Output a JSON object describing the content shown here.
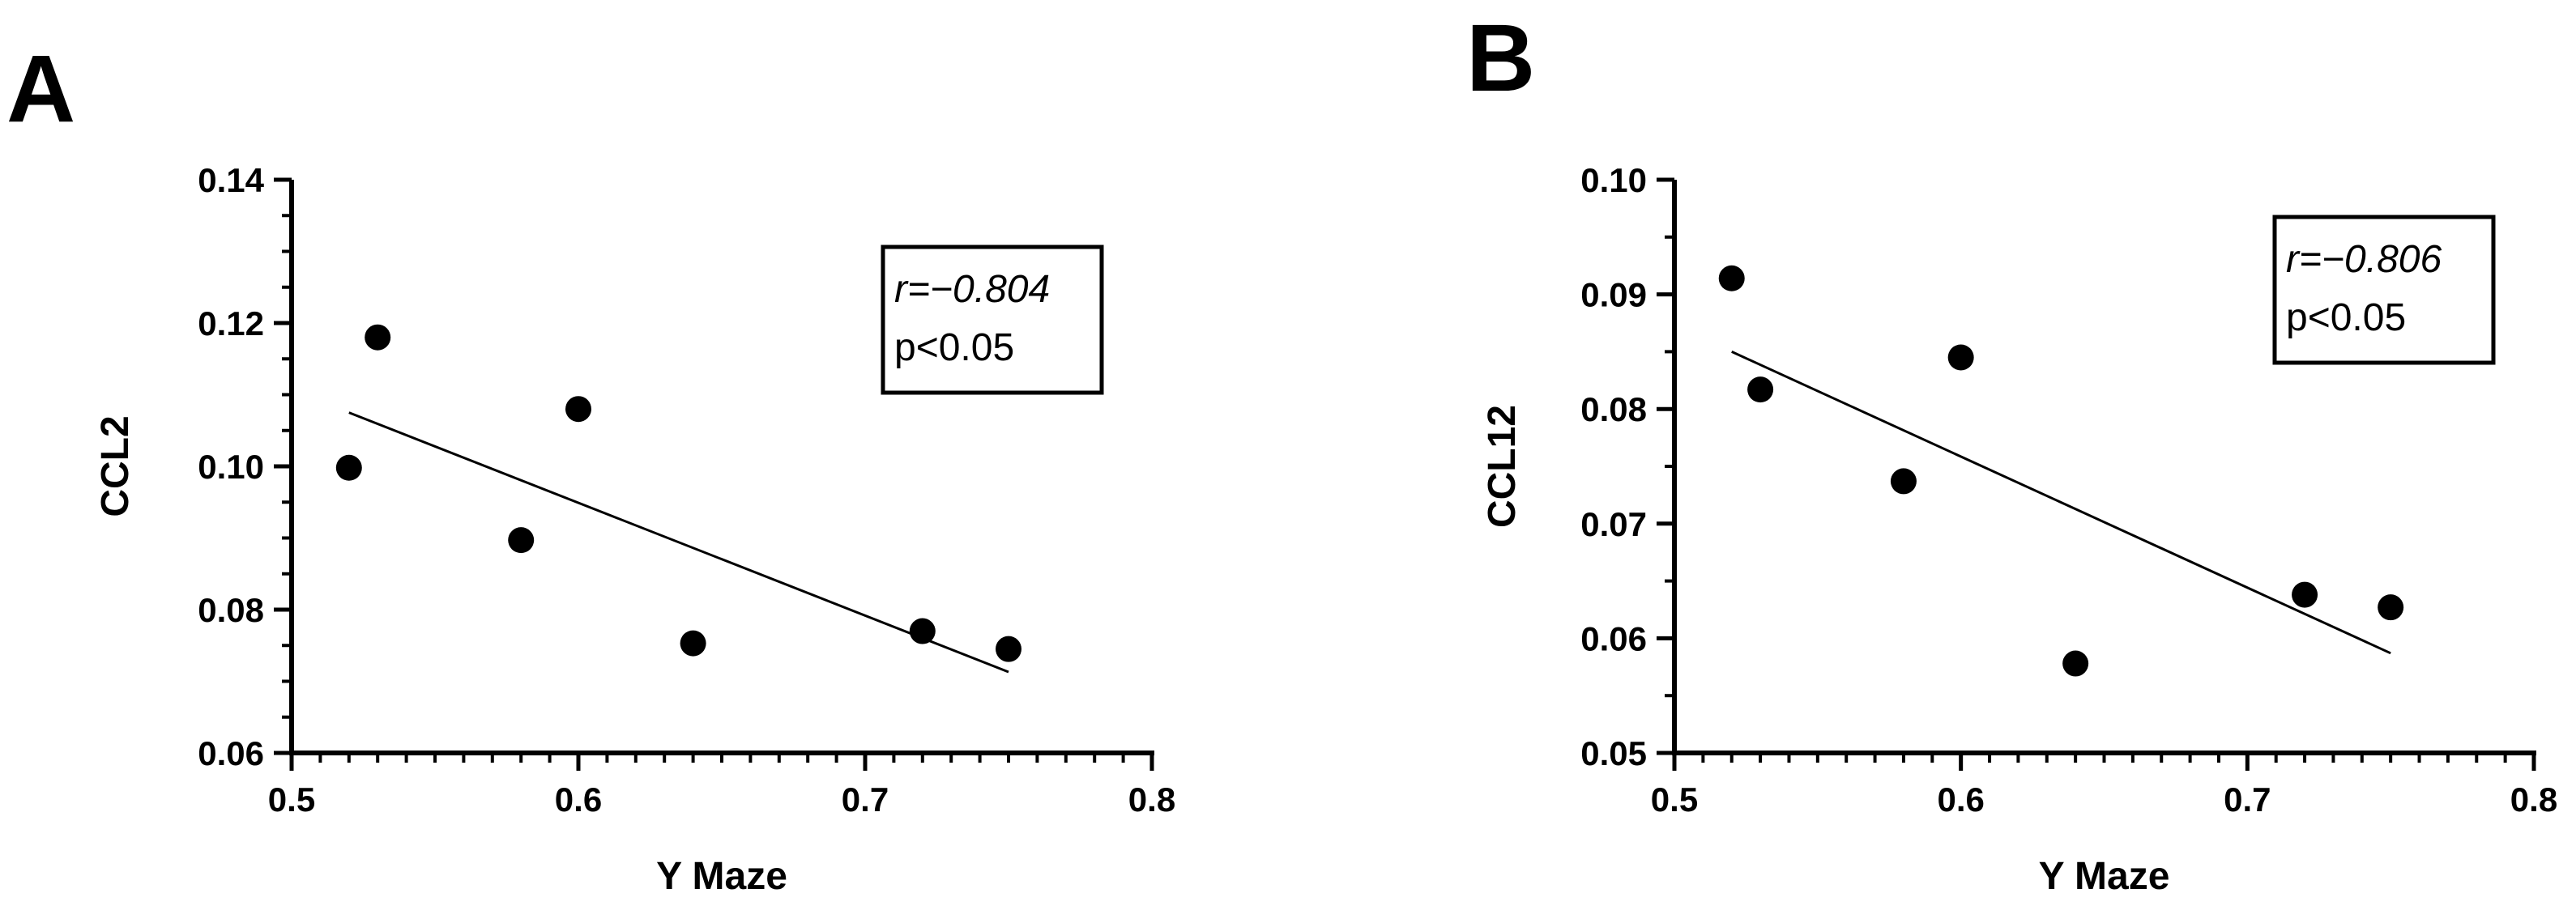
{
  "chart_data": [
    {
      "type": "scatter",
      "panel_label": "A",
      "xlabel": "Y Maze",
      "ylabel": "CCL2",
      "xlim": [
        0.5,
        0.8
      ],
      "ylim": [
        0.06,
        0.14
      ],
      "xticks": [
        "0.5",
        "0.6",
        "0.7",
        "0.8"
      ],
      "yticks": [
        "0.06",
        "0.08",
        "0.10",
        "0.12",
        "0.14"
      ],
      "x": [
        0.52,
        0.53,
        0.58,
        0.6,
        0.64,
        0.72,
        0.75
      ],
      "y": [
        0.0998,
        0.118,
        0.0897,
        0.108,
        0.0753,
        0.077,
        0.0745
      ],
      "regression": {
        "x": [
          0.52,
          0.75
        ],
        "y": [
          0.1075,
          0.0713
        ]
      },
      "annotation": {
        "r_text": "r=−0.804",
        "p_text": "p<0.05"
      },
      "grid": false,
      "legend": "none"
    },
    {
      "type": "scatter",
      "panel_label": "B",
      "xlabel": "Y Maze",
      "ylabel": "CCL12",
      "xlim": [
        0.5,
        0.8
      ],
      "ylim": [
        0.05,
        0.1
      ],
      "xticks": [
        "0.5",
        "0.6",
        "0.7",
        "0.8"
      ],
      "yticks": [
        "0.05",
        "0.06",
        "0.07",
        "0.08",
        "0.09",
        "0.10"
      ],
      "x": [
        0.52,
        0.53,
        0.58,
        0.6,
        0.64,
        0.72,
        0.75
      ],
      "y": [
        0.0914,
        0.0817,
        0.0737,
        0.0845,
        0.0578,
        0.0638,
        0.0627
      ],
      "regression": {
        "x": [
          0.52,
          0.75
        ],
        "y": [
          0.085,
          0.0587
        ]
      },
      "annotation": {
        "r_text": "r=−0.806",
        "p_text": "p<0.05"
      },
      "grid": false,
      "legend": "none"
    }
  ]
}
